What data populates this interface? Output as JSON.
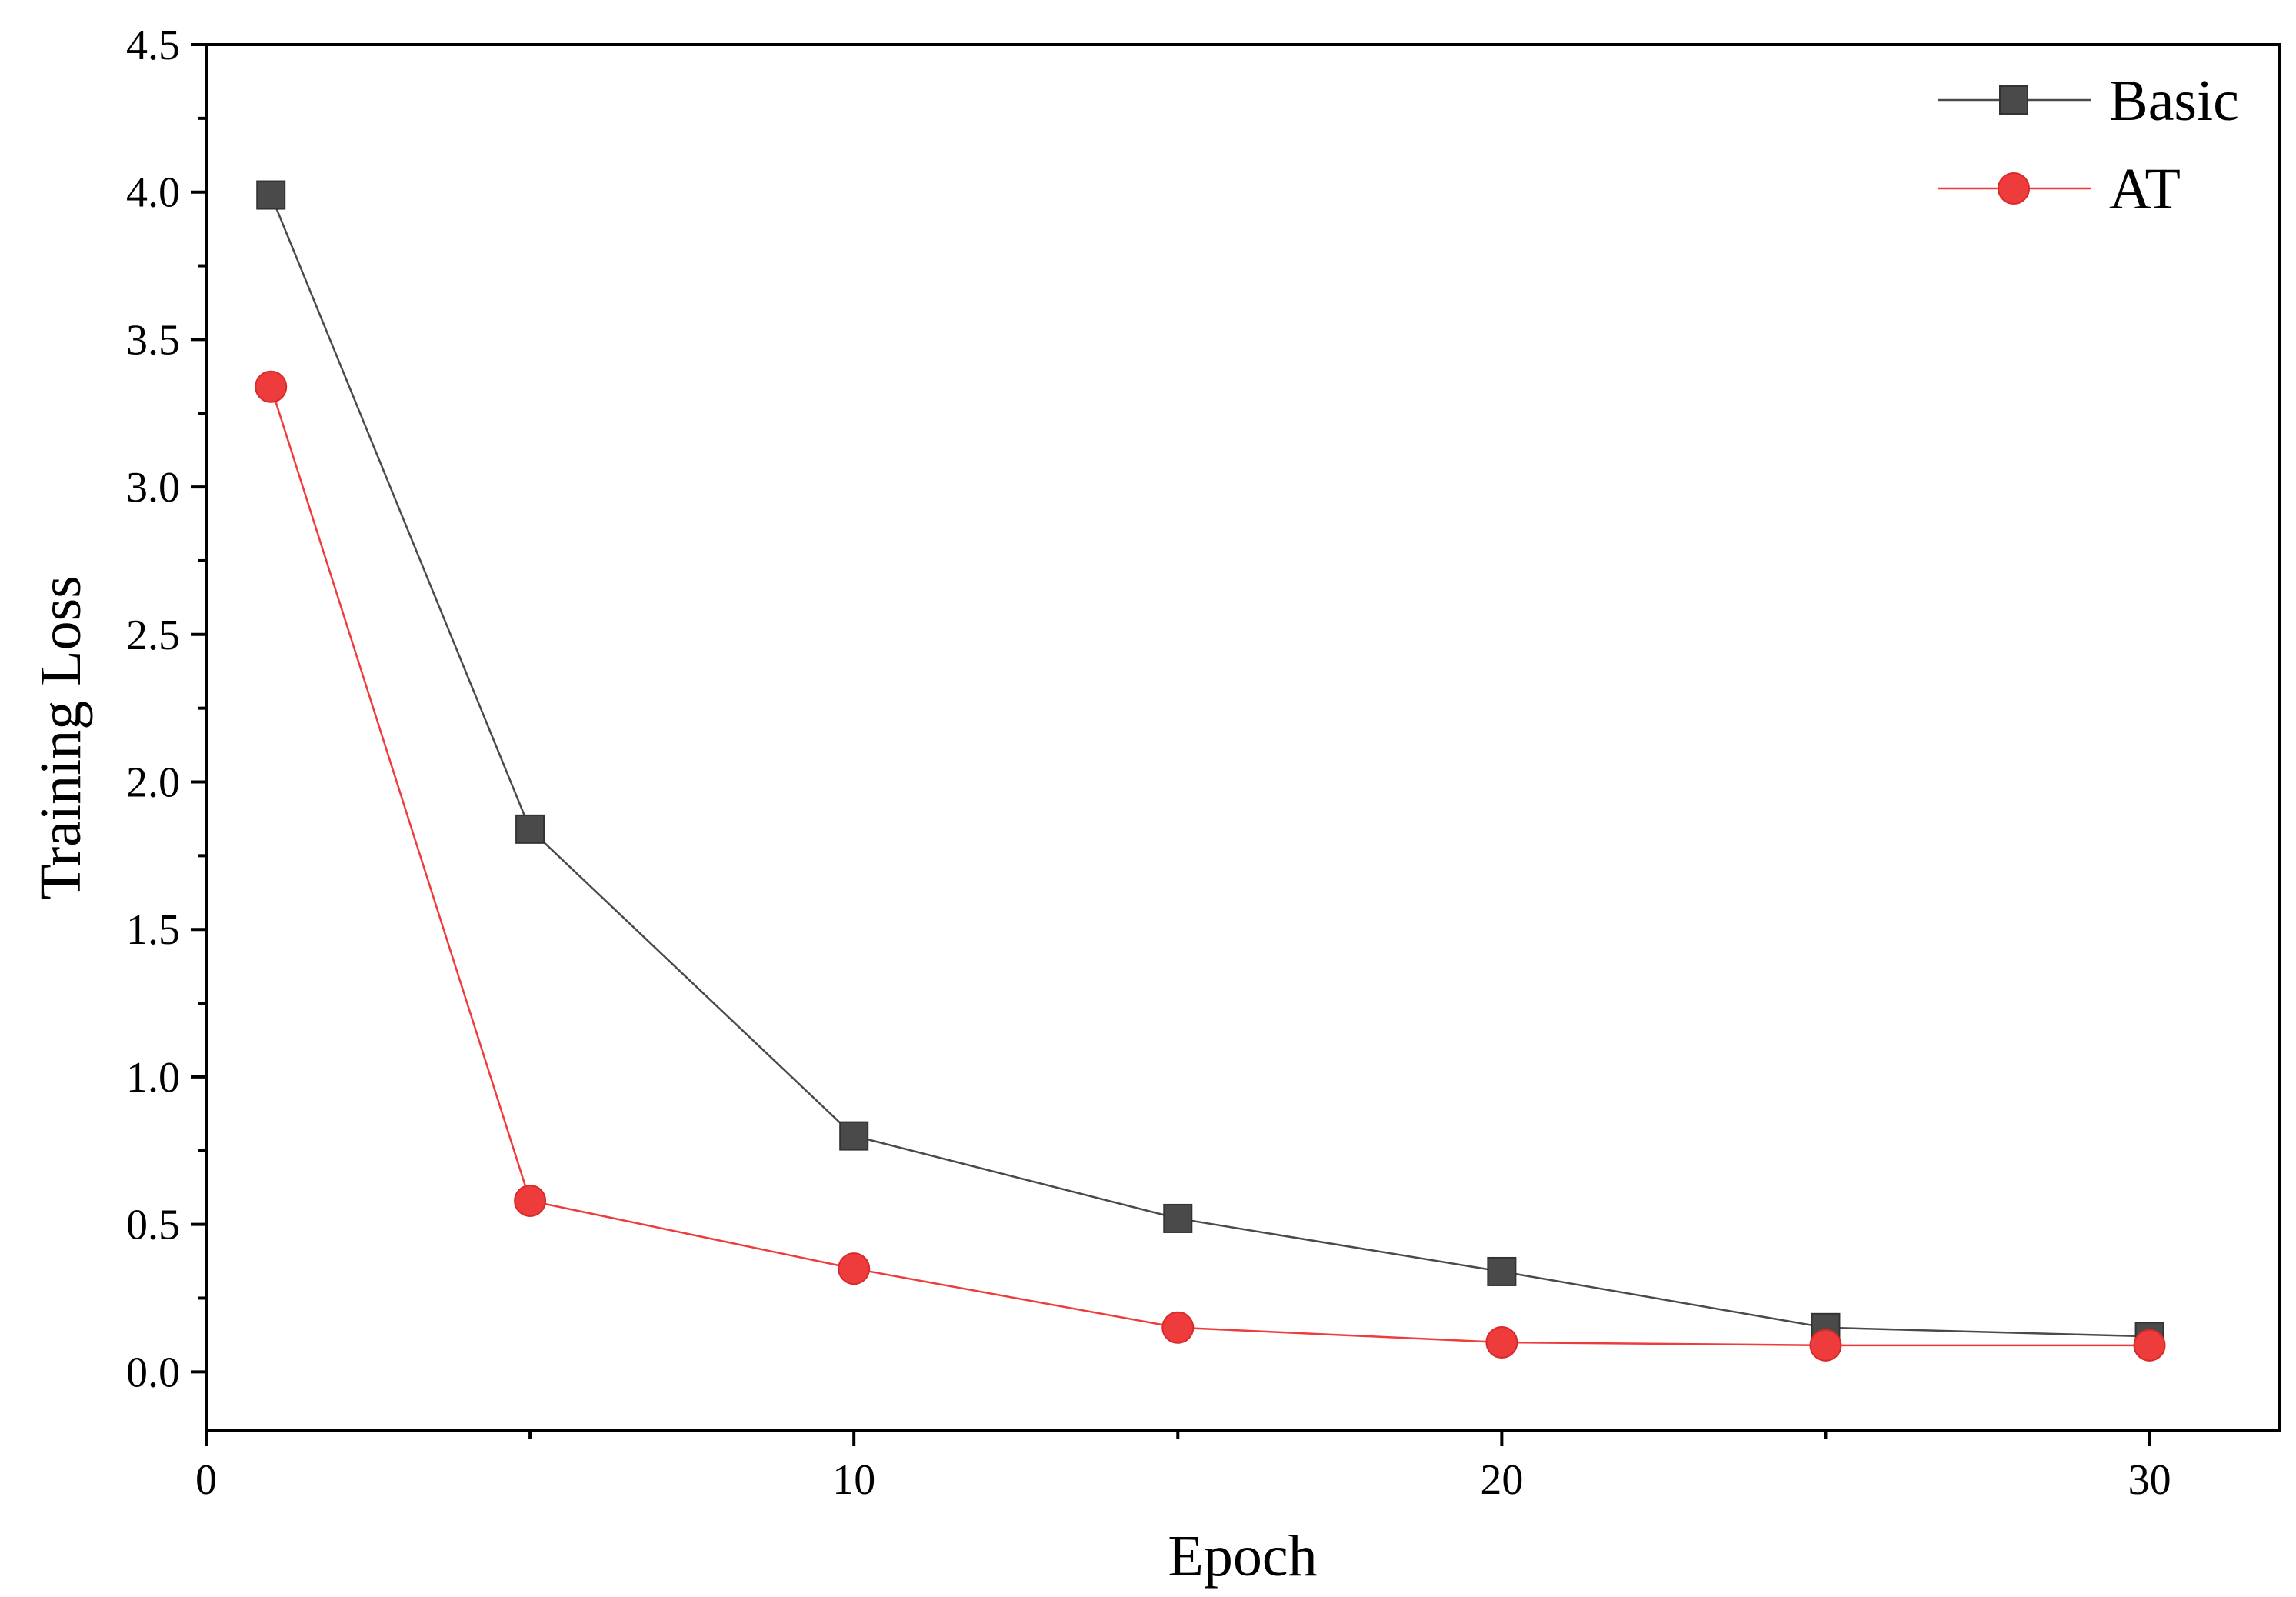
{
  "chart_data": {
    "type": "line",
    "title": "",
    "xlabel": "Epoch",
    "ylabel": "Training Loss",
    "xlim": [
      0,
      32
    ],
    "ylim": [
      -0.2,
      4.5
    ],
    "x_ticks": [
      0,
      10,
      20,
      30
    ],
    "x_tick_labels": [
      "0",
      "10",
      "20",
      "30"
    ],
    "y_ticks": [
      0.0,
      0.5,
      1.0,
      1.5,
      2.0,
      2.5,
      3.0,
      3.5,
      4.0,
      4.5
    ],
    "y_tick_labels": [
      "0.0",
      "0.5",
      "1.0",
      "1.5",
      "2.0",
      "2.5",
      "3.0",
      "3.5",
      "4.0",
      "4.5"
    ],
    "grid": false,
    "legend_position": "top-right",
    "series": [
      {
        "name": "Basic",
        "marker": "square",
        "color": "#4a4a4a",
        "x": [
          1,
          5,
          10,
          15,
          20,
          25,
          30
        ],
        "y": [
          3.99,
          1.84,
          0.8,
          0.52,
          0.34,
          0.15,
          0.12
        ]
      },
      {
        "name": "AT",
        "marker": "circle",
        "color": "#ee3b3b",
        "x": [
          1,
          5,
          10,
          15,
          20,
          25,
          30
        ],
        "y": [
          3.34,
          0.58,
          0.35,
          0.15,
          0.1,
          0.09,
          0.09
        ]
      }
    ]
  }
}
